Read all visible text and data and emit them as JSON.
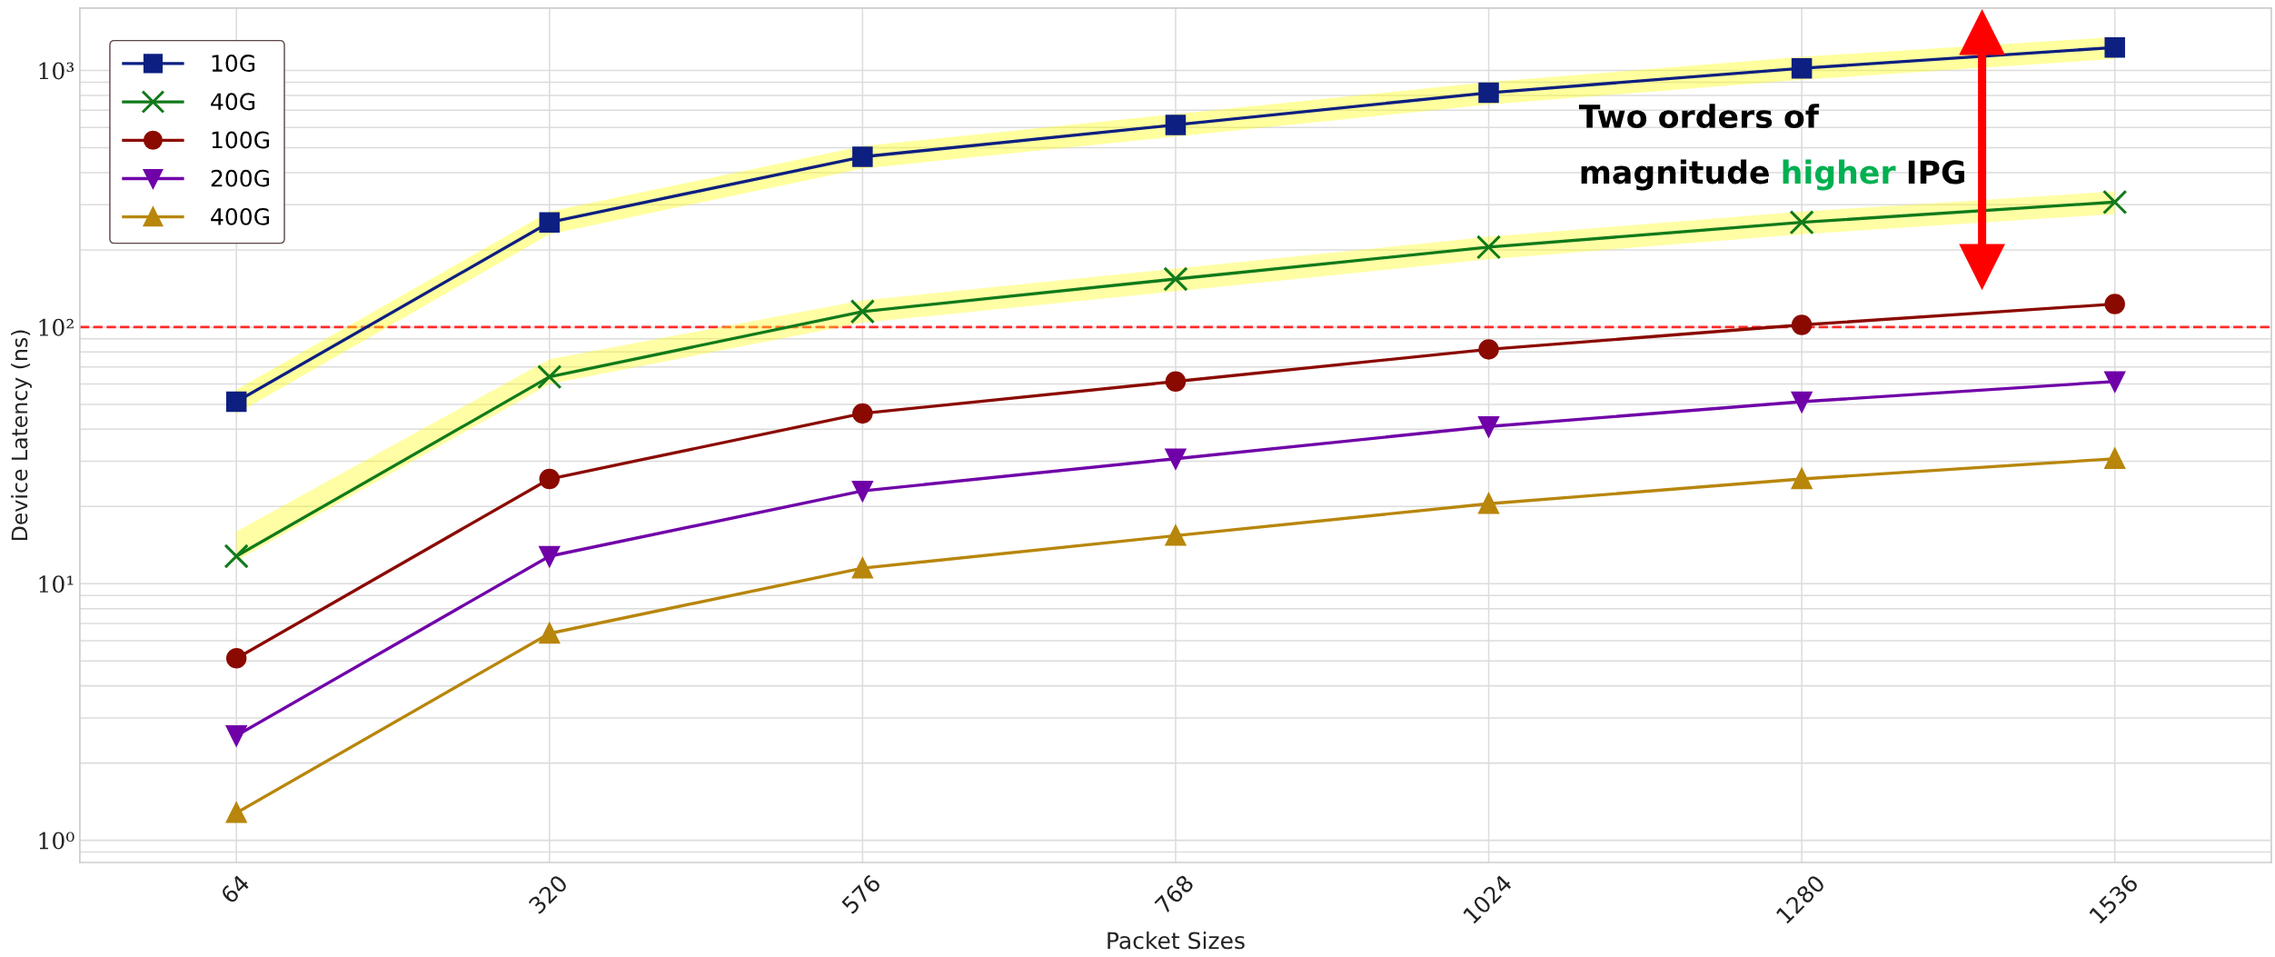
{
  "chart_data": {
    "type": "line",
    "xlabel": "Packet Sizes",
    "ylabel": "Device Latency (ns)",
    "categories": [
      "64",
      "320",
      "576",
      "768",
      "1024",
      "1280",
      "1536"
    ],
    "series": [
      {
        "name": "10G",
        "color": "#0d1f80",
        "marker": "square",
        "values": [
          51.2,
          256,
          461,
          614,
          819,
          1020,
          1230
        ],
        "lower": [
          46,
          230,
          415,
          553,
          737,
          920,
          1110
        ],
        "upper": [
          57,
          282,
          507,
          676,
          901,
          1130,
          1350
        ]
      },
      {
        "name": "40G",
        "color": "#117a1a",
        "marker": "cross",
        "values": [
          12.8,
          64,
          115,
          154,
          205,
          256,
          307
        ],
        "lower": [
          12.3,
          60,
          104,
          138,
          184,
          230,
          276
        ],
        "upper": [
          16,
          75,
          127,
          169,
          225,
          282,
          338
        ]
      },
      {
        "name": "100G",
        "color": "#8b0a00",
        "marker": "circle",
        "values": [
          5.12,
          25.6,
          46.1,
          61.4,
          81.9,
          102,
          123
        ]
      },
      {
        "name": "200G",
        "color": "#7000a8",
        "marker": "triangle-down",
        "values": [
          2.56,
          12.8,
          23,
          30.7,
          41,
          51.2,
          61.4
        ]
      },
      {
        "name": "400G",
        "color": "#b8860b",
        "marker": "triangle",
        "values": [
          1.28,
          6.4,
          11.5,
          15.4,
          20.5,
          25.6,
          30.7
        ]
      }
    ],
    "log": true,
    "ylim": [
      0.82,
      1750
    ],
    "yticks": [
      {
        "value": 1,
        "label": "10⁰"
      },
      {
        "value": 10,
        "label": "10¹"
      },
      {
        "value": 100,
        "label": "10²"
      },
      {
        "value": 1000,
        "label": "10³"
      }
    ],
    "grid": true,
    "legend": "top left",
    "ref_lines": [
      {
        "axis": "y",
        "value": 100,
        "color": "#ff2a2a",
        "line_style": "dashed"
      }
    ],
    "annotations": [
      "Two orders of\nmagnitude higher IPG"
    ]
  }
}
